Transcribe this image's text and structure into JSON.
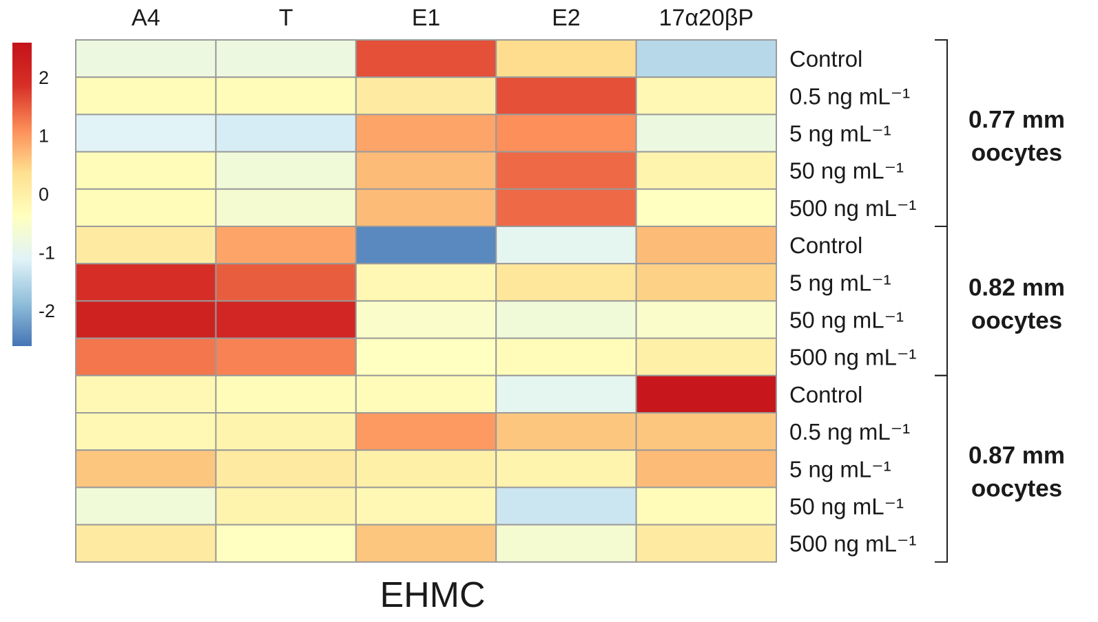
{
  "chart_data": {
    "type": "heatmap",
    "title": "EHMC",
    "columns": [
      "A4",
      "T",
      "E1",
      "E2",
      "17α20βP"
    ],
    "row_labels": [
      "Control",
      "0.5 ng mL⁻¹",
      "5 ng mL⁻¹",
      "50 ng mL⁻¹",
      "500 ng mL⁻¹",
      "Control",
      "5 ng mL⁻¹",
      "50 ng mL⁻¹",
      "500 ng mL⁻¹",
      "Control",
      "0.5 ng mL⁻¹",
      "5 ng mL⁻¹",
      "50 ng mL⁻¹",
      "500 ng mL⁻¹"
    ],
    "groups": [
      {
        "label_line1": "0.77 mm",
        "label_line2": "oocytes",
        "start_row": 0,
        "end_row": 4
      },
      {
        "label_line1": "0.82 mm",
        "label_line2": "oocytes",
        "start_row": 5,
        "end_row": 8
      },
      {
        "label_line1": "0.87 mm",
        "label_line2": "oocytes",
        "start_row": 9,
        "end_row": 13
      }
    ],
    "values": [
      [
        -0.8,
        -0.8,
        1.6,
        0.4,
        -1.5
      ],
      [
        -0.3,
        -0.3,
        0.1,
        1.6,
        -0.2
      ],
      [
        -1.1,
        -1.2,
        0.9,
        1.1,
        -0.8
      ],
      [
        -0.3,
        -0.7,
        0.7,
        1.4,
        -0.1
      ],
      [
        -0.3,
        -0.6,
        0.7,
        1.4,
        -0.4
      ],
      [
        0.1,
        0.9,
        -2.4,
        -1.0,
        0.7
      ],
      [
        1.9,
        1.5,
        -0.2,
        0.2,
        0.5
      ],
      [
        2.2,
        2.1,
        -0.5,
        -0.7,
        -0.5
      ],
      [
        1.3,
        1.2,
        -0.4,
        -0.3,
        0.0
      ],
      [
        -0.2,
        -0.3,
        -0.3,
        -1.0,
        2.5
      ],
      [
        -0.2,
        -0.1,
        1.0,
        0.6,
        0.6
      ],
      [
        0.6,
        0.1,
        0.0,
        -0.1,
        0.7
      ],
      [
        -0.7,
        -0.1,
        -0.2,
        -1.3,
        -0.3
      ],
      [
        0.1,
        -0.4,
        0.6,
        -0.6,
        0.1
      ]
    ],
    "colorbar": {
      "range": [
        -2.6,
        2.6
      ],
      "ticks": [
        2,
        1,
        0,
        -1,
        -2
      ],
      "tick_labels": [
        "2",
        "1",
        "0",
        "-1",
        "-2"
      ],
      "colors": [
        "#4575b4",
        "#91bfdb",
        "#e0f3f8",
        "#ffffbf",
        "#fee090",
        "#fc8d59",
        "#d73027",
        "#c4121a"
      ]
    }
  }
}
